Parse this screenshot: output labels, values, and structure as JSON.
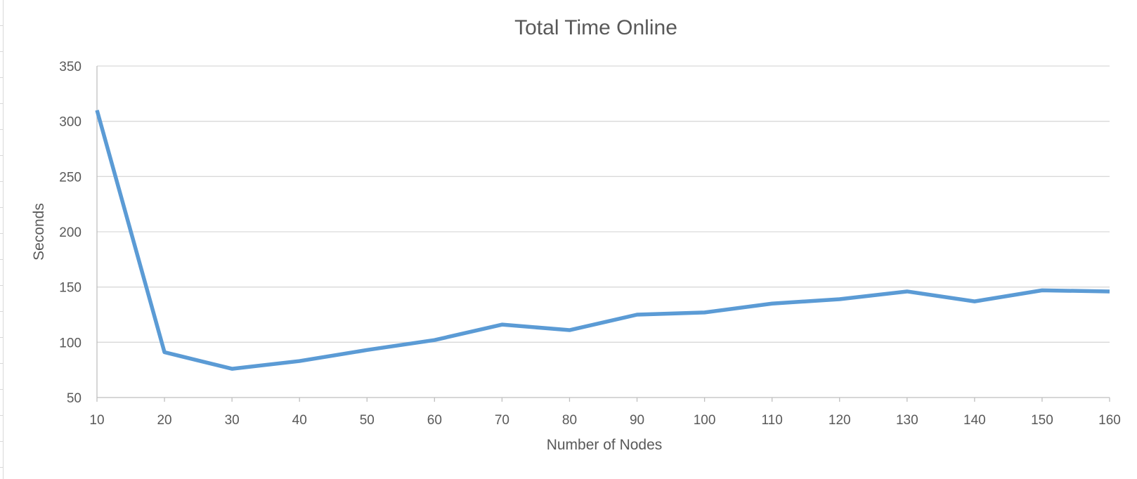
{
  "chart_data": {
    "type": "line",
    "title": "Total Time Online",
    "xlabel": "Number of Nodes",
    "ylabel": "Seconds",
    "x": [
      10,
      20,
      30,
      40,
      50,
      60,
      70,
      80,
      90,
      100,
      110,
      120,
      130,
      140,
      150,
      160
    ],
    "series": [
      {
        "values": [
          310,
          91,
          76,
          83,
          93,
          102,
          116,
          111,
          125,
          127,
          135,
          139,
          146,
          137,
          147,
          146
        ],
        "color": "#5b9bd5"
      }
    ],
    "ylim": [
      50,
      350
    ],
    "yticks": [
      50,
      100,
      150,
      200,
      250,
      300,
      350
    ],
    "xlim": [
      10,
      160
    ],
    "grid": true,
    "legend": "none"
  }
}
